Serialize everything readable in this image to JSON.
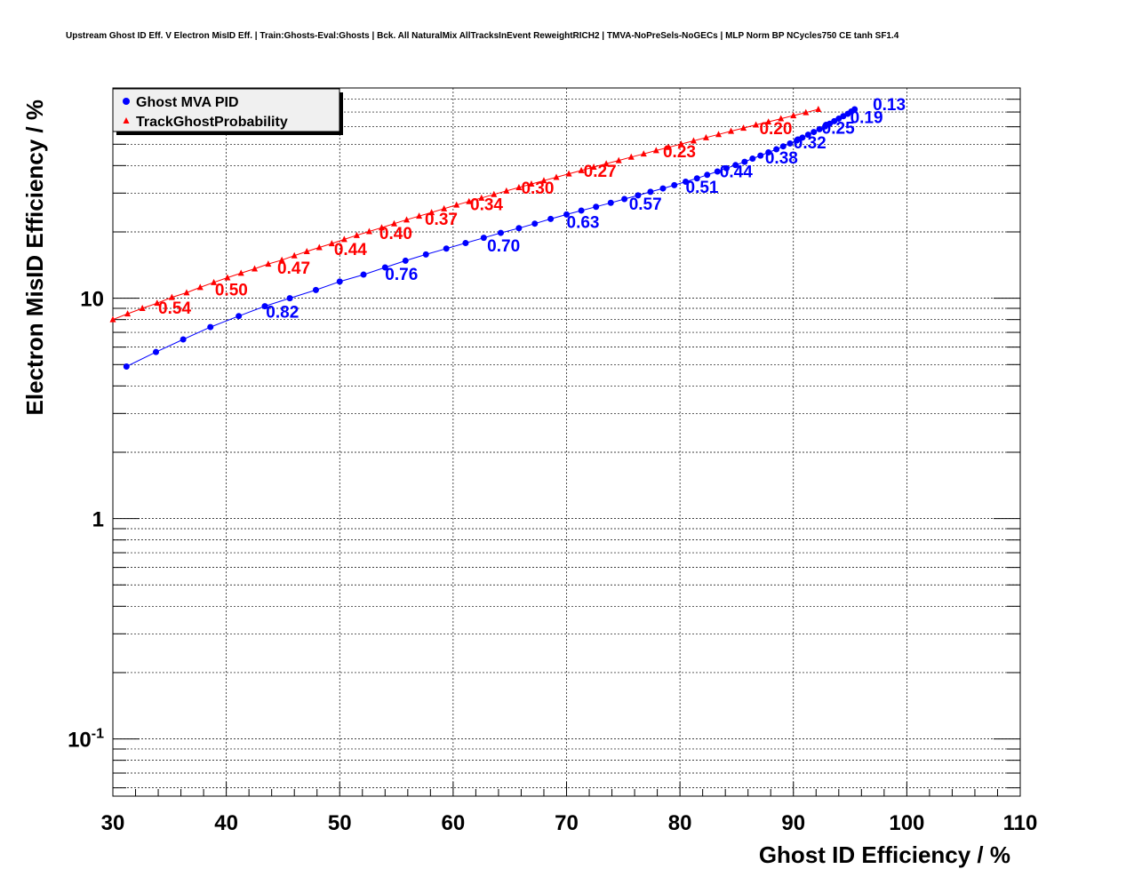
{
  "chart_data": {
    "type": "scatter",
    "title": "Upstream Ghost ID Eff. V Electron MisID Eff. | Train:Ghosts-Eval:Ghosts | Bck. All NaturalMix AllTracksInEvent ReweightRICH2 | TMVA-NoPreSels-NoGECs | MLP Norm BP NCycles750 CE tanh SF1.4",
    "xlabel": "Ghost ID Efficiency / %",
    "ylabel": "Electron MisID Efficiency / %",
    "xlim": [
      30,
      110
    ],
    "ylim": [
      0.055,
      90
    ],
    "yscale": "log",
    "grid": true,
    "legend_position": "top-left",
    "x_ticks": [
      "30",
      "40",
      "50",
      "60",
      "70",
      "80",
      "90",
      "100",
      "110"
    ],
    "y_ticks": [
      {
        "value": 0.1,
        "mantissa": "10",
        "exponent": "-1"
      },
      {
        "value": 1,
        "mantissa": "1",
        "exponent": ""
      },
      {
        "value": 10,
        "mantissa": "10",
        "exponent": ""
      }
    ],
    "series": [
      {
        "name": "Ghost MVA PID",
        "color": "#0000ff",
        "marker": "circle",
        "x": [
          31.2,
          33.8,
          36.2,
          38.6,
          41.1,
          43.4,
          45.6,
          47.9,
          50.0,
          52.1,
          54.0,
          55.8,
          57.6,
          59.4,
          61.1,
          62.7,
          64.2,
          65.8,
          67.2,
          68.6,
          70.0,
          71.3,
          72.6,
          73.9,
          75.1,
          76.3,
          77.4,
          78.5,
          79.5,
          80.5,
          81.5,
          82.4,
          83.3,
          84.1,
          84.9,
          85.7,
          86.4,
          87.1,
          87.8,
          88.5,
          89.1,
          89.7,
          90.3,
          90.8,
          91.3,
          91.8,
          92.3,
          92.8,
          93.2,
          93.6,
          94.0,
          94.4,
          94.8,
          95.1,
          95.4
        ],
        "y": [
          4.9,
          5.7,
          6.5,
          7.4,
          8.3,
          9.2,
          10.0,
          10.9,
          11.9,
          12.8,
          13.8,
          14.8,
          15.8,
          16.8,
          17.8,
          18.8,
          19.8,
          20.8,
          21.8,
          22.9,
          24.0,
          25.0,
          26.0,
          27.1,
          28.2,
          29.3,
          30.4,
          31.5,
          32.6,
          33.8,
          35.0,
          36.3,
          37.6,
          38.9,
          40.2,
          41.6,
          43.0,
          44.4,
          45.9,
          47.4,
          48.9,
          50.4,
          52.0,
          53.6,
          55.2,
          56.8,
          58.5,
          60.2,
          61.9,
          63.6,
          65.3,
          67.0,
          68.7,
          70.4,
          72.0
        ],
        "labels": [
          {
            "x": 43.5,
            "y": 8.7,
            "text": "0.82"
          },
          {
            "x": 54.0,
            "y": 12.9,
            "text": "0.76"
          },
          {
            "x": 63.0,
            "y": 17.4,
            "text": "0.70"
          },
          {
            "x": 70.0,
            "y": 22.2,
            "text": "0.63"
          },
          {
            "x": 75.5,
            "y": 26.9,
            "text": "0.57"
          },
          {
            "x": 80.5,
            "y": 32.1,
            "text": "0.51"
          },
          {
            "x": 83.5,
            "y": 37.8,
            "text": "0.44"
          },
          {
            "x": 87.5,
            "y": 43.6,
            "text": "0.38"
          },
          {
            "x": 90.0,
            "y": 51.1,
            "text": "0.32"
          },
          {
            "x": 92.5,
            "y": 59.5,
            "text": "0.25"
          },
          {
            "x": 95.0,
            "y": 66.7,
            "text": "0.19"
          },
          {
            "x": 97.0,
            "y": 76.2,
            "text": "0.13"
          }
        ]
      },
      {
        "name": "TrackGhostProbability",
        "color": "#ff0000",
        "marker": "triangle",
        "x": [
          30.0,
          31.3,
          32.6,
          33.9,
          35.2,
          36.5,
          37.7,
          38.9,
          40.1,
          41.3,
          42.5,
          43.7,
          44.9,
          46.0,
          47.1,
          48.2,
          49.3,
          50.4,
          51.5,
          52.6,
          53.7,
          54.8,
          55.9,
          57.0,
          58.1,
          59.2,
          60.3,
          61.4,
          62.5,
          63.6,
          64.7,
          65.8,
          66.9,
          68.0,
          69.1,
          70.2,
          71.3,
          72.4,
          73.5,
          74.6,
          75.7,
          76.8,
          77.9,
          79.0,
          80.1,
          81.2,
          82.3,
          83.4,
          84.5,
          85.6,
          86.7,
          87.8,
          88.9,
          90.0,
          91.1,
          92.2
        ],
        "y": [
          8.0,
          8.5,
          9.0,
          9.5,
          10.1,
          10.6,
          11.2,
          11.8,
          12.4,
          13.0,
          13.6,
          14.3,
          14.9,
          15.6,
          16.3,
          17.0,
          17.7,
          18.5,
          19.3,
          20.1,
          20.9,
          21.8,
          22.7,
          23.6,
          24.5,
          25.5,
          26.5,
          27.5,
          28.5,
          29.6,
          30.7,
          31.8,
          33.0,
          34.2,
          35.4,
          36.7,
          38.0,
          39.4,
          40.8,
          42.2,
          43.7,
          45.2,
          46.8,
          48.4,
          50.1,
          51.8,
          53.6,
          55.4,
          57.3,
          59.2,
          61.2,
          63.2,
          65.3,
          67.4,
          69.6,
          72.0
        ],
        "labels": [
          {
            "x": 34.0,
            "y": 9.1,
            "text": "0.54"
          },
          {
            "x": 39.0,
            "y": 11.0,
            "text": "0.50"
          },
          {
            "x": 44.5,
            "y": 13.8,
            "text": "0.47"
          },
          {
            "x": 49.5,
            "y": 16.8,
            "text": "0.44"
          },
          {
            "x": 53.5,
            "y": 19.8,
            "text": "0.40"
          },
          {
            "x": 57.5,
            "y": 23.0,
            "text": "0.37"
          },
          {
            "x": 61.5,
            "y": 26.8,
            "text": "0.34"
          },
          {
            "x": 66.0,
            "y": 31.8,
            "text": "0.30"
          },
          {
            "x": 71.5,
            "y": 38.0,
            "text": "0.27"
          },
          {
            "x": 78.5,
            "y": 46.5,
            "text": "0.23"
          },
          {
            "x": 87.0,
            "y": 59.2,
            "text": "0.20"
          }
        ]
      }
    ]
  }
}
